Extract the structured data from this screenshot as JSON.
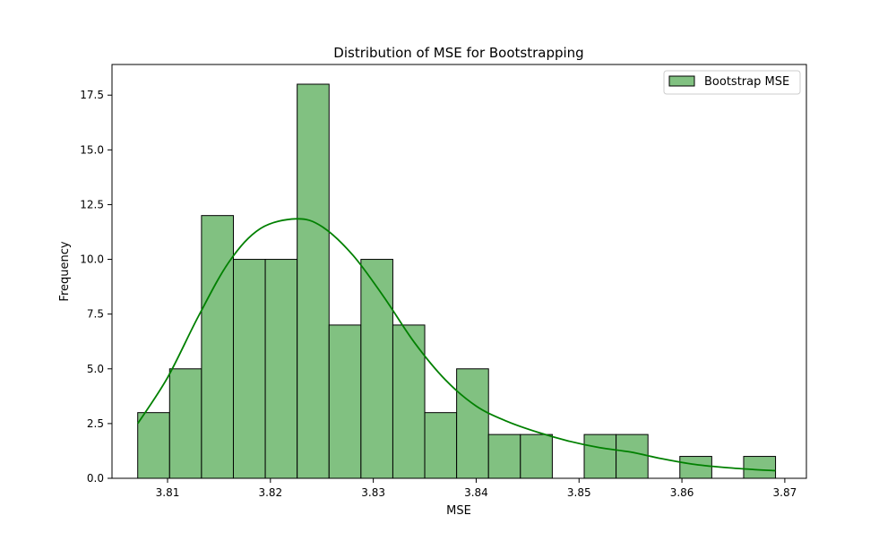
{
  "chart_data": {
    "type": "bar",
    "title": "Distribution of MSE for Bootstrapping",
    "xlabel": "MSE",
    "ylabel": "Frequency",
    "xlim": [
      3.8046,
      3.8721
    ],
    "ylim": [
      0,
      18.9
    ],
    "x_ticks": [
      3.81,
      3.82,
      3.83,
      3.84,
      3.85,
      3.86,
      3.87
    ],
    "x_tick_labels": [
      "3.81",
      "3.82",
      "3.83",
      "3.84",
      "3.85",
      "3.86",
      "3.87"
    ],
    "y_ticks": [
      0,
      2.5,
      5,
      7.5,
      10,
      12.5,
      15,
      17.5
    ],
    "y_tick_labels": [
      "0.0",
      "2.5",
      "5.0",
      "7.5",
      "10.0",
      "12.5",
      "15.0",
      "17.5"
    ],
    "bin_start": 3.8071,
    "bin_width": 0.0031,
    "values": [
      3,
      5,
      12,
      10,
      10,
      18,
      7,
      10,
      7,
      3,
      5,
      2,
      2,
      0,
      2,
      2,
      0,
      1,
      0,
      1
    ],
    "kde": {
      "x": [
        3.8071,
        3.81,
        3.813,
        3.816,
        3.819,
        3.8225,
        3.825,
        3.828,
        3.831,
        3.834,
        3.837,
        3.84,
        3.843,
        3.846,
        3.849,
        3.852,
        3.855,
        3.858,
        3.861,
        3.864,
        3.867,
        3.8691
      ],
      "y": [
        2.5,
        4.6,
        7.4,
        9.9,
        11.4,
        11.85,
        11.5,
        10.2,
        8.3,
        6.2,
        4.5,
        3.3,
        2.6,
        2.1,
        1.7,
        1.4,
        1.2,
        0.9,
        0.65,
        0.5,
        0.4,
        0.35
      ]
    },
    "series": [
      {
        "name": "Bootstrap MSE"
      }
    ],
    "legend_position": "top-right",
    "grid": false,
    "colors": {
      "bar_fill": "#81c181",
      "bar_edge": "#000000",
      "kde_line": "#008000"
    }
  }
}
